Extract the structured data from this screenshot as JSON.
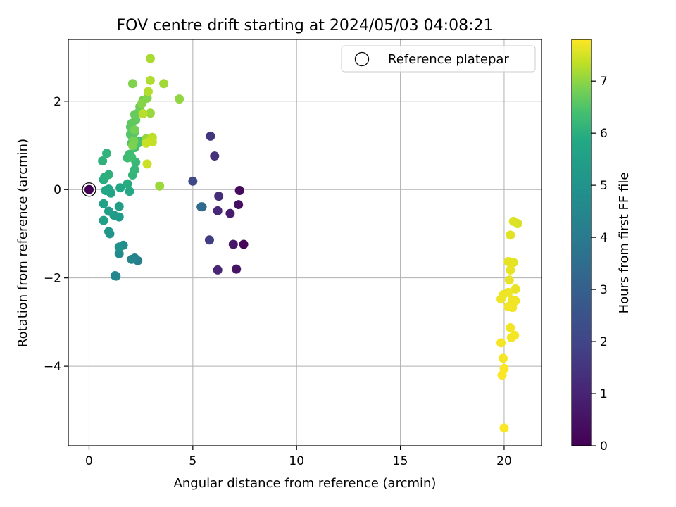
{
  "chart_data": {
    "type": "scatter",
    "title": "FOV centre drift starting at 2024/05/03 04:08:21",
    "xlabel": "Angular distance from reference (arcmin)",
    "ylabel": "Rotation from reference (arcmin)",
    "xlim": [
      -1.0,
      21.8
    ],
    "ylim": [
      -5.8,
      3.4
    ],
    "xticks": [
      0,
      5,
      10,
      15,
      20
    ],
    "yticks": [
      -4,
      -2,
      0,
      2
    ],
    "xtick_labels": [
      "0",
      "5",
      "10",
      "15",
      "20"
    ],
    "ytick_labels": [
      "−4",
      "−2",
      "0",
      "2"
    ],
    "grid": true,
    "legend": {
      "placement": "top-right",
      "entries": [
        "Reference platepar"
      ]
    },
    "colorbar": {
      "label": "Hours from first FF file",
      "colormap": "viridis",
      "range": [
        0,
        7.8
      ],
      "ticks": [
        0,
        1,
        2,
        3,
        4,
        5,
        6,
        7
      ],
      "tick_labels": [
        "0",
        "1",
        "2",
        "3",
        "4",
        "5",
        "6",
        "7"
      ]
    },
    "reference": {
      "x": 0,
      "y": 0,
      "c": 0
    },
    "points": [
      {
        "x": 7.45,
        "y": -1.24,
        "c": 0.1
      },
      {
        "x": 7.25,
        "y": -0.02,
        "c": 0.2
      },
      {
        "x": 7.2,
        "y": -0.34,
        "c": 0.3
      },
      {
        "x": 7.1,
        "y": -1.8,
        "c": 0.4
      },
      {
        "x": 6.95,
        "y": -1.24,
        "c": 0.5
      },
      {
        "x": 6.8,
        "y": -0.54,
        "c": 0.6
      },
      {
        "x": 6.2,
        "y": -1.82,
        "c": 0.8
      },
      {
        "x": 6.2,
        "y": -0.48,
        "c": 0.9
      },
      {
        "x": 6.25,
        "y": -0.15,
        "c": 1.0
      },
      {
        "x": 6.05,
        "y": 0.76,
        "c": 1.1
      },
      {
        "x": 5.85,
        "y": 1.21,
        "c": 1.2
      },
      {
        "x": 5.8,
        "y": -1.14,
        "c": 1.4
      },
      {
        "x": 5.0,
        "y": 0.19,
        "c": 1.7
      },
      {
        "x": 5.45,
        "y": -0.39,
        "c": 2.6
      },
      {
        "x": 5.4,
        "y": -0.39,
        "c": 2.7
      },
      {
        "x": 2.35,
        "y": -1.61,
        "c": 3.3
      },
      {
        "x": 2.2,
        "y": -1.55,
        "c": 3.4
      },
      {
        "x": 2.05,
        "y": -1.58,
        "c": 3.5
      },
      {
        "x": 1.3,
        "y": -1.96,
        "c": 3.6
      },
      {
        "x": 1.25,
        "y": -1.95,
        "c": 3.6
      },
      {
        "x": 1.45,
        "y": -1.45,
        "c": 3.7
      },
      {
        "x": 1.65,
        "y": -1.26,
        "c": 3.8
      },
      {
        "x": 1.45,
        "y": -1.3,
        "c": 3.9
      },
      {
        "x": 1.0,
        "y": -1.0,
        "c": 4.0
      },
      {
        "x": 0.95,
        "y": -0.95,
        "c": 4.1
      },
      {
        "x": 1.45,
        "y": -0.62,
        "c": 4.2
      },
      {
        "x": 1.2,
        "y": -0.58,
        "c": 4.25
      },
      {
        "x": 0.95,
        "y": -0.49,
        "c": 4.3
      },
      {
        "x": 1.45,
        "y": -0.38,
        "c": 4.35
      },
      {
        "x": 0.7,
        "y": -0.7,
        "c": 4.4
      },
      {
        "x": 0.7,
        "y": -0.32,
        "c": 4.45
      },
      {
        "x": 1.05,
        "y": -0.08,
        "c": 4.5
      },
      {
        "x": 0.95,
        "y": 0.01,
        "c": 4.55
      },
      {
        "x": 0.8,
        "y": -0.02,
        "c": 4.6
      },
      {
        "x": 1.5,
        "y": 0.04,
        "c": 4.65
      },
      {
        "x": 1.95,
        "y": -0.04,
        "c": 4.7
      },
      {
        "x": 1.85,
        "y": 0.13,
        "c": 4.8
      },
      {
        "x": 0.7,
        "y": 0.22,
        "c": 4.85
      },
      {
        "x": 0.75,
        "y": 0.28,
        "c": 4.9
      },
      {
        "x": 0.95,
        "y": 0.34,
        "c": 4.95
      },
      {
        "x": 0.65,
        "y": 0.65,
        "c": 5.0
      },
      {
        "x": 0.85,
        "y": 0.82,
        "c": 5.05
      },
      {
        "x": 2.1,
        "y": 0.33,
        "c": 5.1
      },
      {
        "x": 2.2,
        "y": 0.45,
        "c": 5.15
      },
      {
        "x": 2.25,
        "y": 0.62,
        "c": 5.2
      },
      {
        "x": 1.85,
        "y": 0.72,
        "c": 5.3
      },
      {
        "x": 1.95,
        "y": 0.8,
        "c": 5.35
      },
      {
        "x": 2.05,
        "y": 0.73,
        "c": 5.4
      },
      {
        "x": 2.2,
        "y": 0.95,
        "c": 5.45
      },
      {
        "x": 2.4,
        "y": 1.1,
        "c": 5.5
      },
      {
        "x": 2.35,
        "y": 1.05,
        "c": 5.55
      },
      {
        "x": 2.05,
        "y": 1.05,
        "c": 5.6
      },
      {
        "x": 2.1,
        "y": 1.18,
        "c": 5.65
      },
      {
        "x": 2.0,
        "y": 1.25,
        "c": 5.7
      },
      {
        "x": 2.2,
        "y": 1.3,
        "c": 5.75
      },
      {
        "x": 2.0,
        "y": 1.42,
        "c": 5.8
      },
      {
        "x": 2.05,
        "y": 1.5,
        "c": 5.85
      },
      {
        "x": 2.25,
        "y": 1.58,
        "c": 5.9
      },
      {
        "x": 2.2,
        "y": 1.7,
        "c": 5.95
      },
      {
        "x": 2.4,
        "y": 1.75,
        "c": 6.0
      },
      {
        "x": 2.45,
        "y": 1.88,
        "c": 6.05
      },
      {
        "x": 2.6,
        "y": 2.02,
        "c": 6.1
      },
      {
        "x": 2.2,
        "y": 1.35,
        "c": 6.15
      },
      {
        "x": 2.15,
        "y": 1.1,
        "c": 6.2
      },
      {
        "x": 2.1,
        "y": 1.0,
        "c": 6.25
      },
      {
        "x": 2.1,
        "y": 2.4,
        "c": 6.3
      },
      {
        "x": 2.8,
        "y": 2.07,
        "c": 6.35
      },
      {
        "x": 2.55,
        "y": 1.95,
        "c": 6.4
      },
      {
        "x": 4.35,
        "y": 2.05,
        "c": 6.5
      },
      {
        "x": 2.75,
        "y": 1.15,
        "c": 6.55
      },
      {
        "x": 2.95,
        "y": 1.73,
        "c": 6.6
      },
      {
        "x": 3.4,
        "y": 0.08,
        "c": 6.65
      },
      {
        "x": 3.6,
        "y": 2.4,
        "c": 6.7
      },
      {
        "x": 2.95,
        "y": 2.97,
        "c": 6.8
      },
      {
        "x": 2.95,
        "y": 2.47,
        "c": 6.85
      },
      {
        "x": 2.85,
        "y": 2.22,
        "c": 6.9
      },
      {
        "x": 2.6,
        "y": 1.72,
        "c": 6.95
      },
      {
        "x": 3.05,
        "y": 1.18,
        "c": 7.0
      },
      {
        "x": 2.95,
        "y": 1.12,
        "c": 7.05
      },
      {
        "x": 3.05,
        "y": 1.08,
        "c": 7.1
      },
      {
        "x": 2.75,
        "y": 1.05,
        "c": 7.15
      },
      {
        "x": 2.8,
        "y": 0.58,
        "c": 7.2
      },
      {
        "x": 20.65,
        "y": -0.77,
        "c": 7.35
      },
      {
        "x": 20.45,
        "y": -0.72,
        "c": 7.4
      },
      {
        "x": 20.3,
        "y": -1.03,
        "c": 7.45
      },
      {
        "x": 20.2,
        "y": -1.63,
        "c": 7.5
      },
      {
        "x": 20.45,
        "y": -1.65,
        "c": 7.5
      },
      {
        "x": 20.3,
        "y": -1.82,
        "c": 7.55
      },
      {
        "x": 20.25,
        "y": -2.05,
        "c": 7.55
      },
      {
        "x": 20.55,
        "y": -2.25,
        "c": 7.55
      },
      {
        "x": 19.95,
        "y": -2.38,
        "c": 7.6
      },
      {
        "x": 20.2,
        "y": -2.33,
        "c": 7.6
      },
      {
        "x": 19.85,
        "y": -2.48,
        "c": 7.6
      },
      {
        "x": 20.4,
        "y": -2.5,
        "c": 7.6
      },
      {
        "x": 20.55,
        "y": -2.52,
        "c": 7.65
      },
      {
        "x": 20.2,
        "y": -2.65,
        "c": 7.65
      },
      {
        "x": 20.4,
        "y": -2.67,
        "c": 7.65
      },
      {
        "x": 20.3,
        "y": -3.13,
        "c": 7.65
      },
      {
        "x": 20.5,
        "y": -3.3,
        "c": 7.7
      },
      {
        "x": 20.35,
        "y": -3.35,
        "c": 7.7
      },
      {
        "x": 19.85,
        "y": -3.47,
        "c": 7.7
      },
      {
        "x": 19.95,
        "y": -3.82,
        "c": 7.7
      },
      {
        "x": 20.0,
        "y": -4.05,
        "c": 7.75
      },
      {
        "x": 19.9,
        "y": -4.2,
        "c": 7.75
      },
      {
        "x": 20.0,
        "y": -5.4,
        "c": 7.75
      }
    ]
  }
}
